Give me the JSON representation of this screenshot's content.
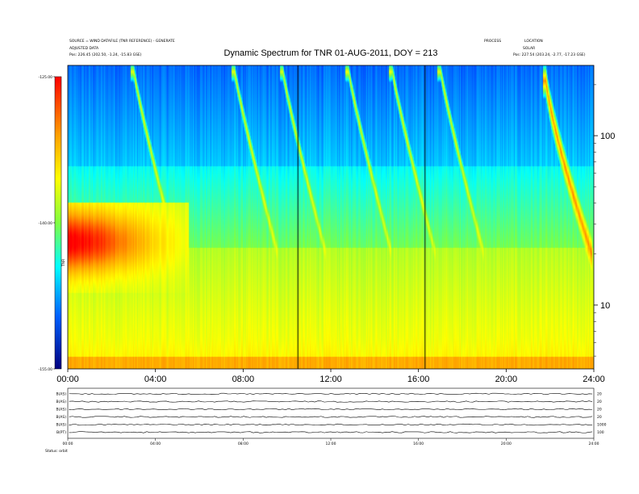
{
  "chart_data": {
    "type": "heatmap",
    "title": "Dynamic Spectrum for TNR 01-AUG-2011, DOY = 213",
    "header_left": [
      "SOURCE = WIND DATAFILE (TNR REFERENCE) - GENERATE",
      "ADJUSTED DATA",
      "Pos: 226.45 (202.50, -1.24, -15.83 GSE)"
    ],
    "header_right": [
      "PROCESS",
      "LOCATION",
      "SOLAR",
      "Pos: 227.54 (203.24, -2.77, -17.23 GSE)"
    ],
    "x_ticks": [
      "00:00",
      "04:00",
      "08:00",
      "12:00",
      "16:00",
      "20:00",
      "24:00"
    ],
    "colorbar_ticks": [
      "-125.00",
      "-140.00",
      "-155.00"
    ],
    "colorbar_label": "TNR",
    "colorbar_range": [
      -155,
      -125
    ],
    "y_right_ticks": [
      "100",
      "10"
    ],
    "y_right_scale": "log",
    "x_range_hours": [
      0,
      24
    ],
    "bursts": [
      {
        "t": 3.0,
        "kind": "type3"
      },
      {
        "t": 7.6,
        "kind": "type3"
      },
      {
        "t": 9.8,
        "kind": "type3"
      },
      {
        "t": 12.8,
        "kind": "type3"
      },
      {
        "t": 14.8,
        "kind": "type3"
      },
      {
        "t": 17.0,
        "kind": "type3"
      },
      {
        "t": 21.8,
        "kind": "type2"
      }
    ],
    "low_freq_enhancement": {
      "t_start": 0.0,
      "t_end": 3.5,
      "peak_db": -127
    },
    "vertical_lines_hours": [
      10.5,
      16.3
    ]
  },
  "bottom_panel": {
    "rows": [
      {
        "label": "B(AS)",
        "right_tick": "20"
      },
      {
        "label": "B(AS)",
        "right_tick": "20"
      },
      {
        "label": "B(AS)",
        "right_tick": "20"
      },
      {
        "label": "B(AS)",
        "right_tick": "20"
      },
      {
        "label": "B(AS)",
        "right_tick": "1000"
      },
      {
        "label": "B(PT)",
        "right_tick": "100"
      }
    ],
    "x_ticks": [
      "00:00",
      "04:00",
      "08:00",
      "12:00",
      "16:00",
      "20:00",
      "24:00"
    ],
    "footer_left": "Status: orbit"
  },
  "colors": {
    "background": "#ffffff",
    "axis": "#000000"
  }
}
